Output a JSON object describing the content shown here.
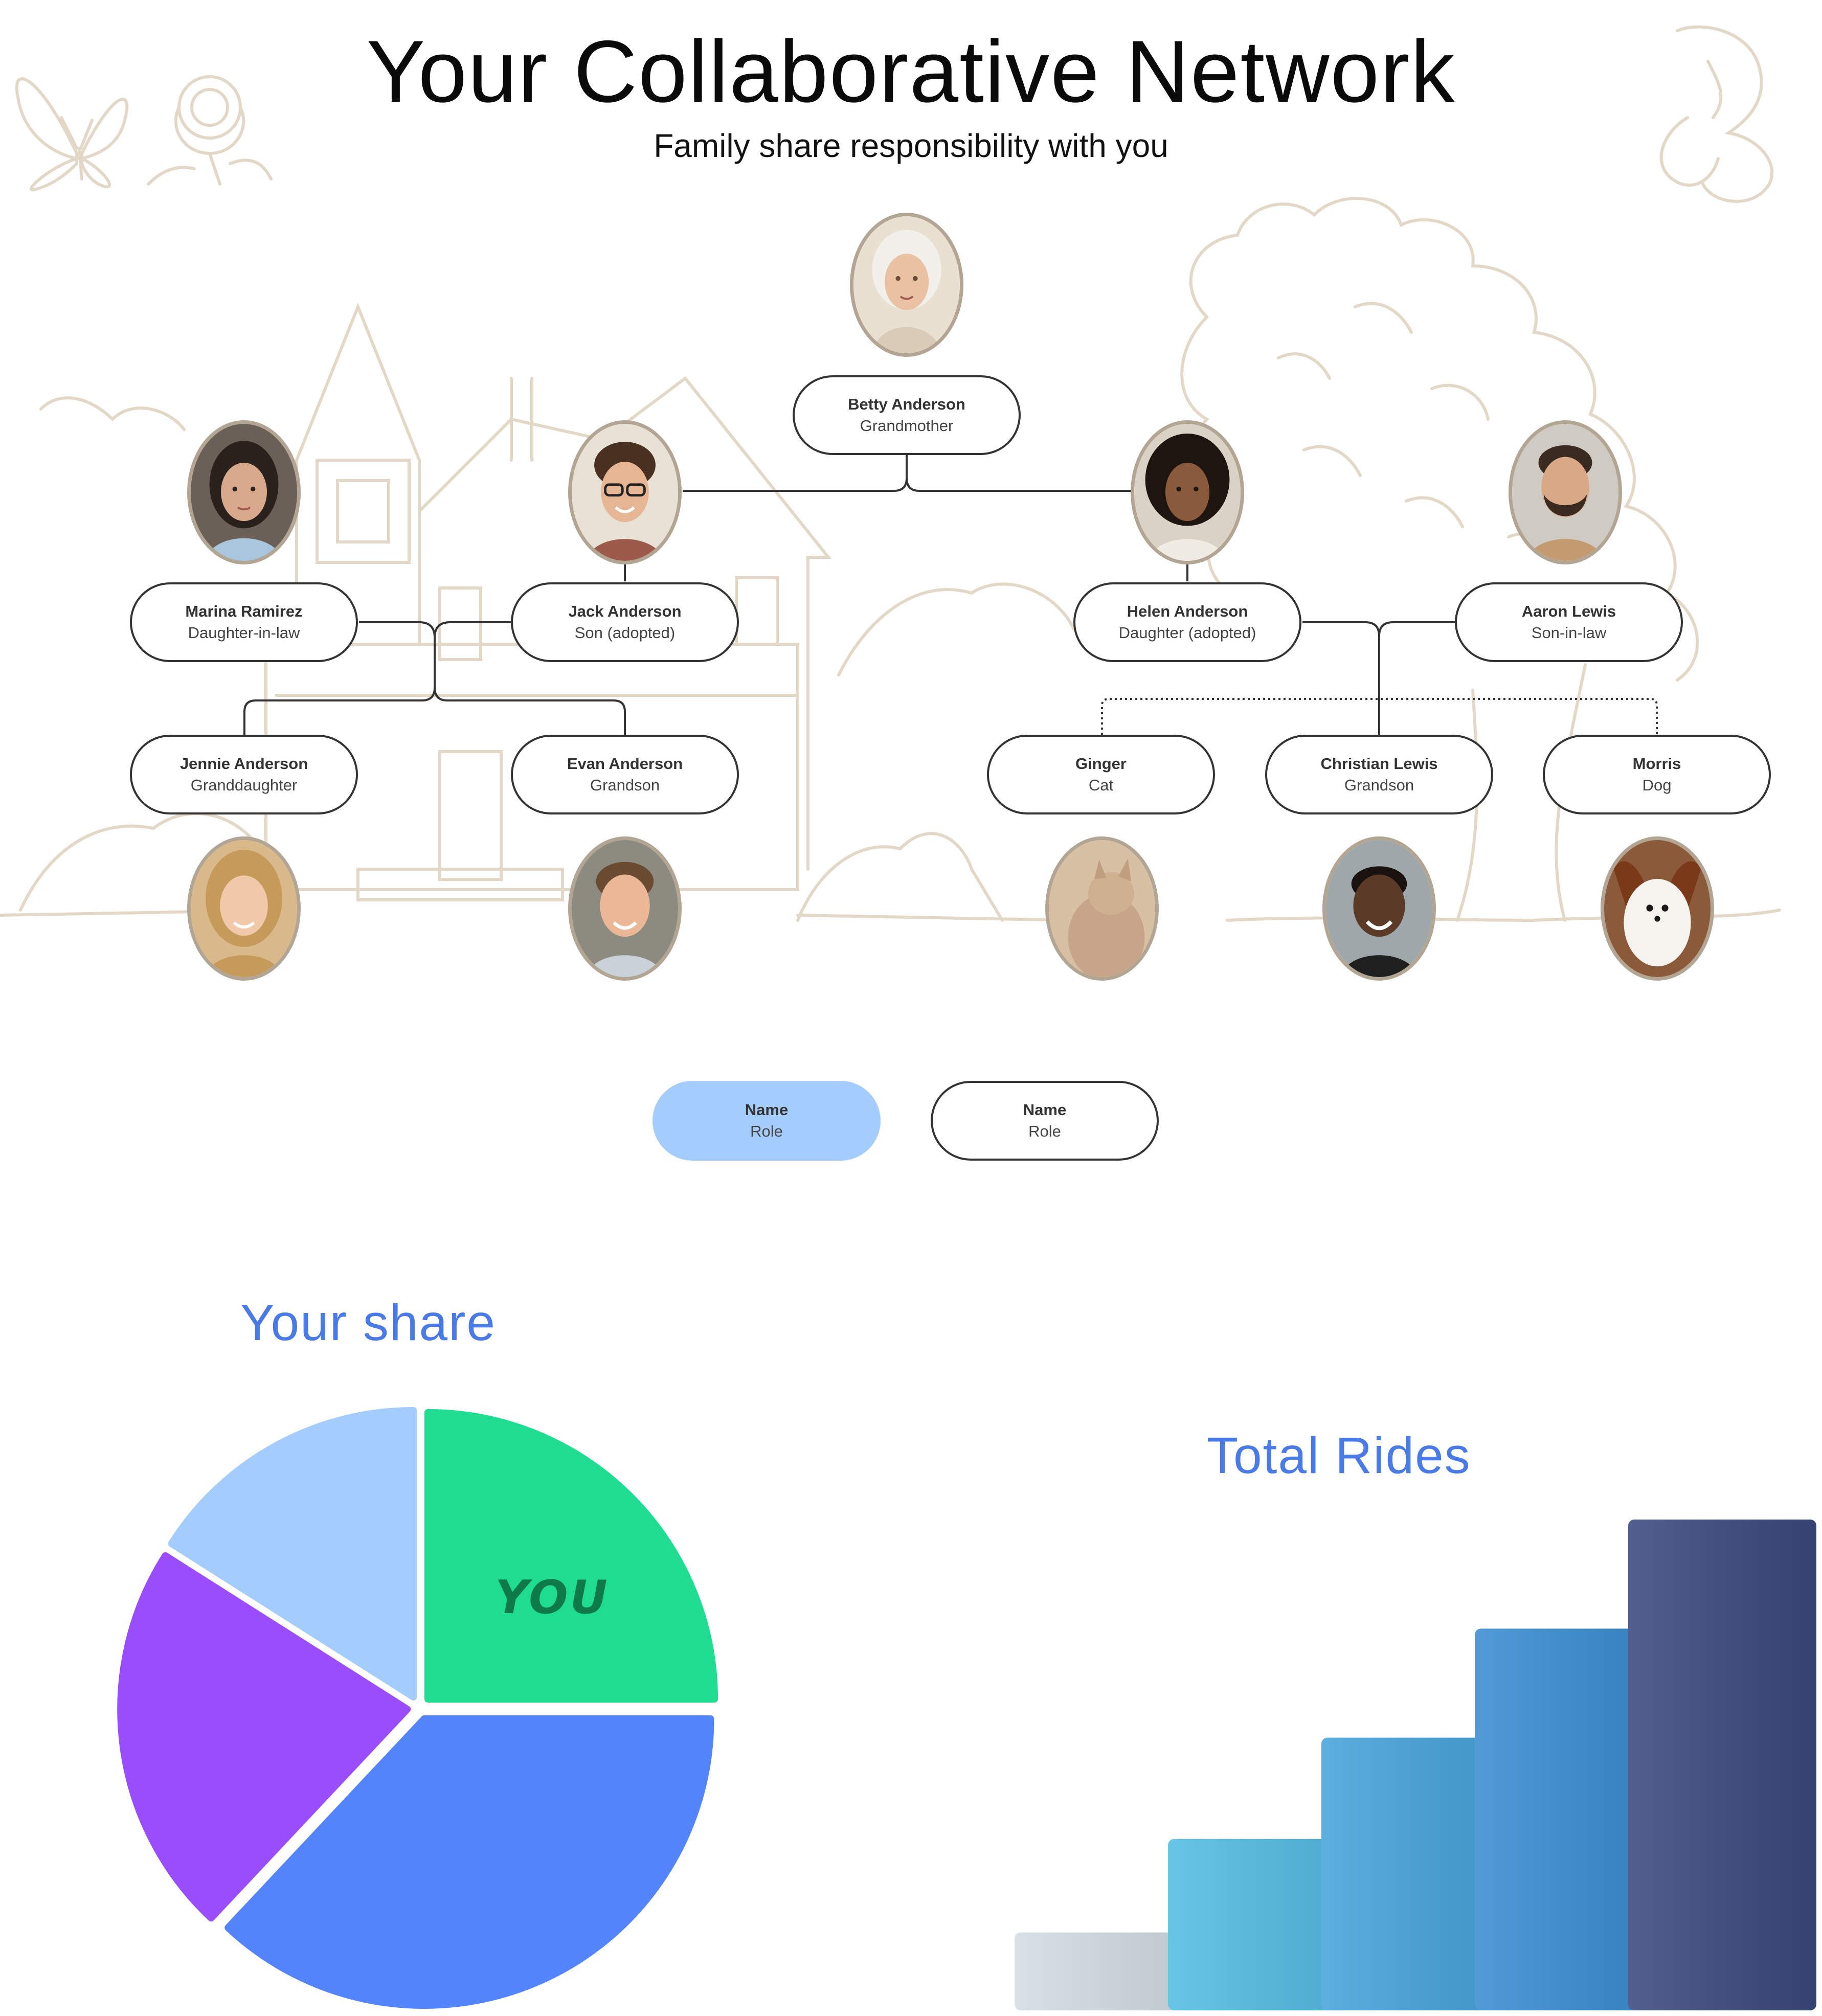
{
  "header": {
    "title": "Your Collaborative Network",
    "subtitle": "Family share responsibility with you"
  },
  "family_tree": {
    "members": [
      {
        "id": "betty",
        "name": "Betty Anderson",
        "role": "Grandmother"
      },
      {
        "id": "marina",
        "name": "Marina Ramirez",
        "role": "Daughter-in-law"
      },
      {
        "id": "jack",
        "name": "Jack Anderson",
        "role": "Son (adopted)"
      },
      {
        "id": "helen",
        "name": "Helen Anderson",
        "role": "Daughter (adopted)"
      },
      {
        "id": "aaron",
        "name": "Aaron Lewis",
        "role": "Son-in-law"
      },
      {
        "id": "jennie",
        "name": "Jennie Anderson",
        "role": "Granddaughter"
      },
      {
        "id": "evan",
        "name": "Evan Anderson",
        "role": "Grandson"
      },
      {
        "id": "ginger",
        "name": "Ginger",
        "role": "Cat"
      },
      {
        "id": "christian",
        "name": "Christian Lewis",
        "role": "Grandson"
      },
      {
        "id": "morris",
        "name": "Morris",
        "role": "Dog"
      }
    ],
    "avatar_colors": {
      "frame": "#b3a594",
      "background_art": "#e3d8c7"
    }
  },
  "legend": {
    "items": [
      {
        "name": "Name",
        "role": "Role",
        "style": "highlighted",
        "color": "#a4ccff"
      },
      {
        "name": "Name",
        "role": "Role",
        "style": "outlined",
        "color": "#ffffff"
      }
    ]
  },
  "share_section": {
    "title": "Your share",
    "you_label": "YOU",
    "chart_data": {
      "type": "pie",
      "slices": [
        {
          "label": "YOU",
          "value": 25,
          "color": "#1edd91"
        },
        {
          "label": "",
          "value": 37,
          "color": "#5484fb"
        },
        {
          "label": "",
          "value": 22,
          "color": "#9a4dfd"
        },
        {
          "label": "",
          "value": 16,
          "color": "#a4ccff"
        }
      ]
    }
  },
  "rides_section": {
    "title": "Total Rides",
    "chart_data": {
      "type": "bar",
      "categories": [
        "",
        "",
        "",
        "",
        ""
      ],
      "values": [
        1,
        2.2,
        3.5,
        4.9,
        6.3
      ],
      "colors": [
        "#d3dde4",
        "#53bde4",
        "#46a4db",
        "#3a8dd2",
        "#3a4a7e"
      ],
      "axes_visible": false
    }
  }
}
